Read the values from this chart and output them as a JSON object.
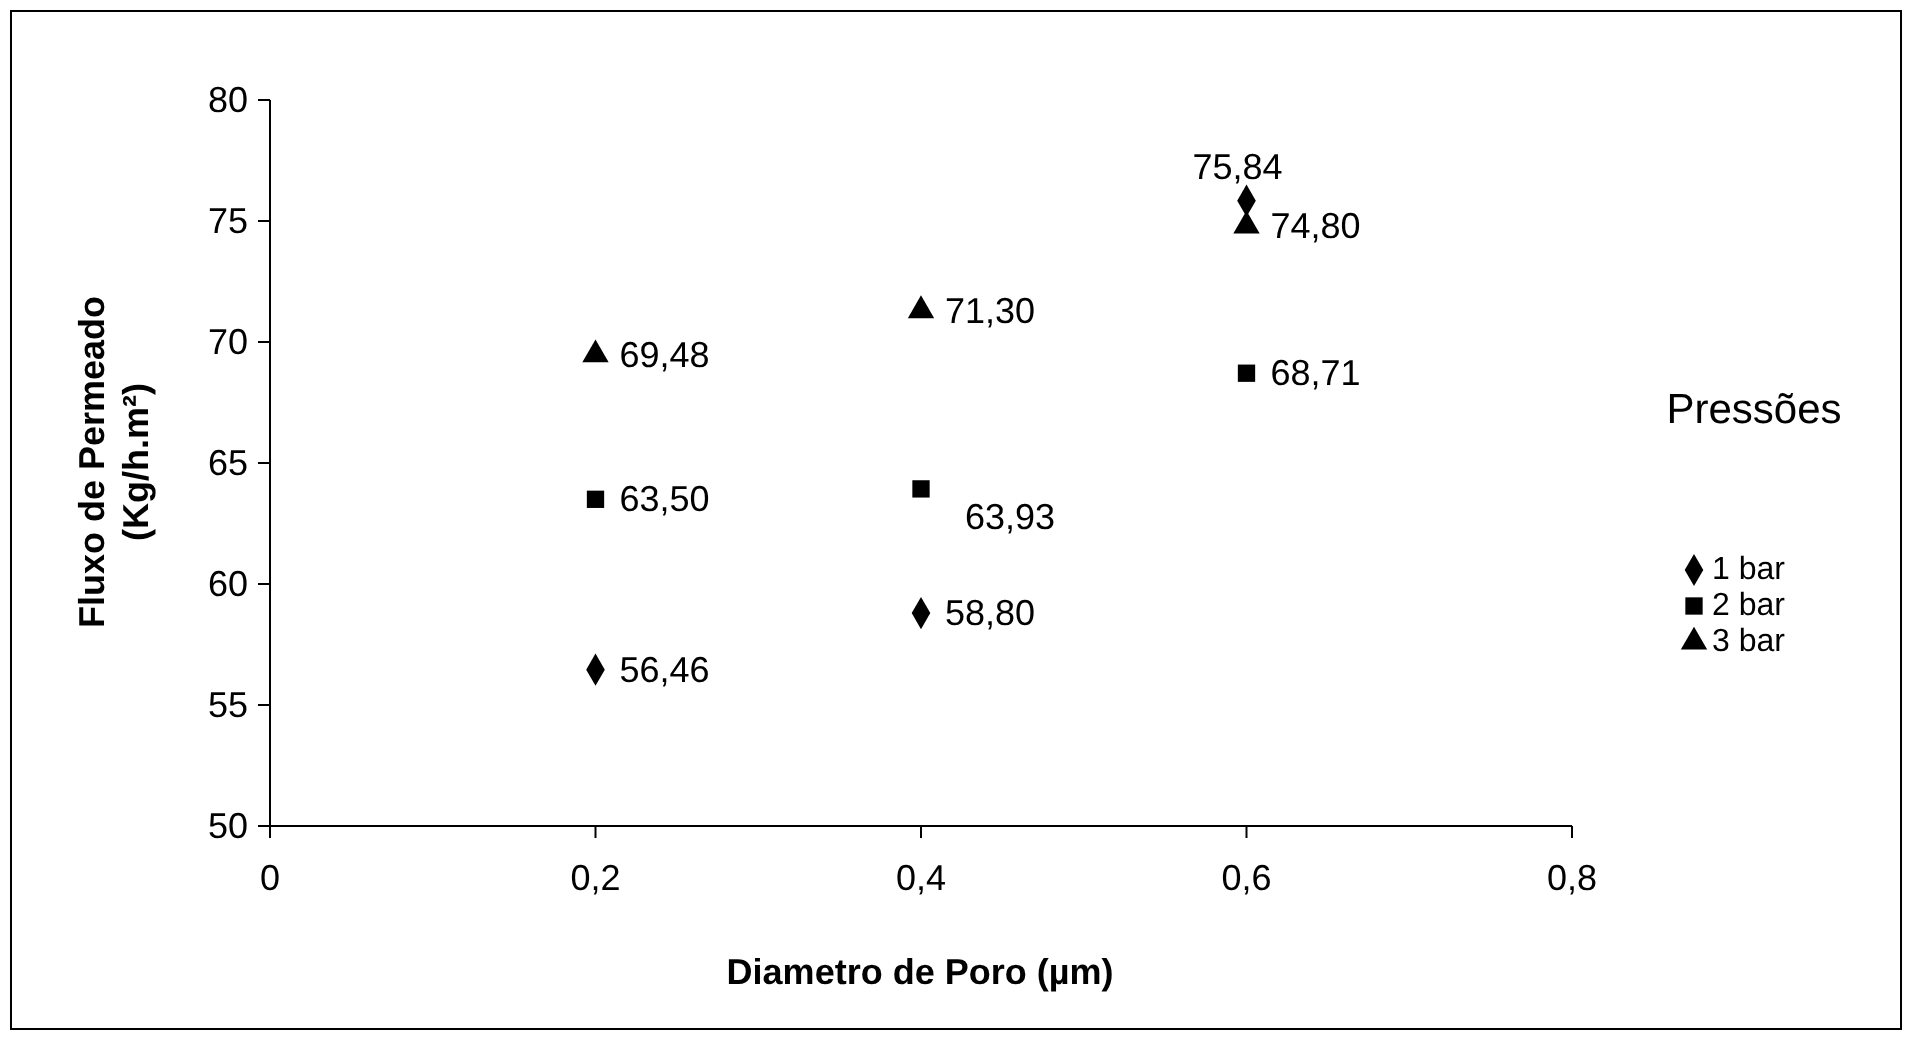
{
  "chart_data": {
    "type": "scatter",
    "xlabel": "Diametro de Poro (µm)",
    "ylabel": "Fluxo de Permeado\n(Kg/h.m²)",
    "legend_title": "Pressões",
    "legend": "right",
    "grid": false,
    "xlim": [
      0,
      0.8
    ],
    "xticks": [
      0,
      {
        "value": 0.2,
        "label": "0,2"
      },
      {
        "value": 0.4,
        "label": "0,4"
      },
      {
        "value": 0.6,
        "label": "0,6"
      },
      {
        "value": 0.8,
        "label": "0,8"
      }
    ],
    "ylim": [
      50,
      80
    ],
    "yticks": [
      50,
      55,
      60,
      65,
      70,
      75,
      80
    ],
    "x": [
      0.2,
      0.4,
      0.6
    ],
    "series": [
      {
        "name": "1 bar",
        "color": "#000000",
        "marker": "diamond",
        "values": [
          56.46,
          58.8,
          75.84
        ],
        "value_labels": [
          "56,46",
          "58,80",
          "75,84"
        ]
      },
      {
        "name": "2 bar",
        "color": "#000000",
        "marker": "square",
        "values": [
          63.5,
          63.93,
          68.71
        ],
        "value_labels": [
          "63,50",
          "63,93",
          "68,71"
        ]
      },
      {
        "name": "3 bar",
        "color": "#000000",
        "marker": "triangle",
        "values": [
          69.48,
          71.3,
          74.8
        ],
        "value_labels": [
          "69,48",
          "71,30",
          "74,80"
        ]
      }
    ]
  }
}
